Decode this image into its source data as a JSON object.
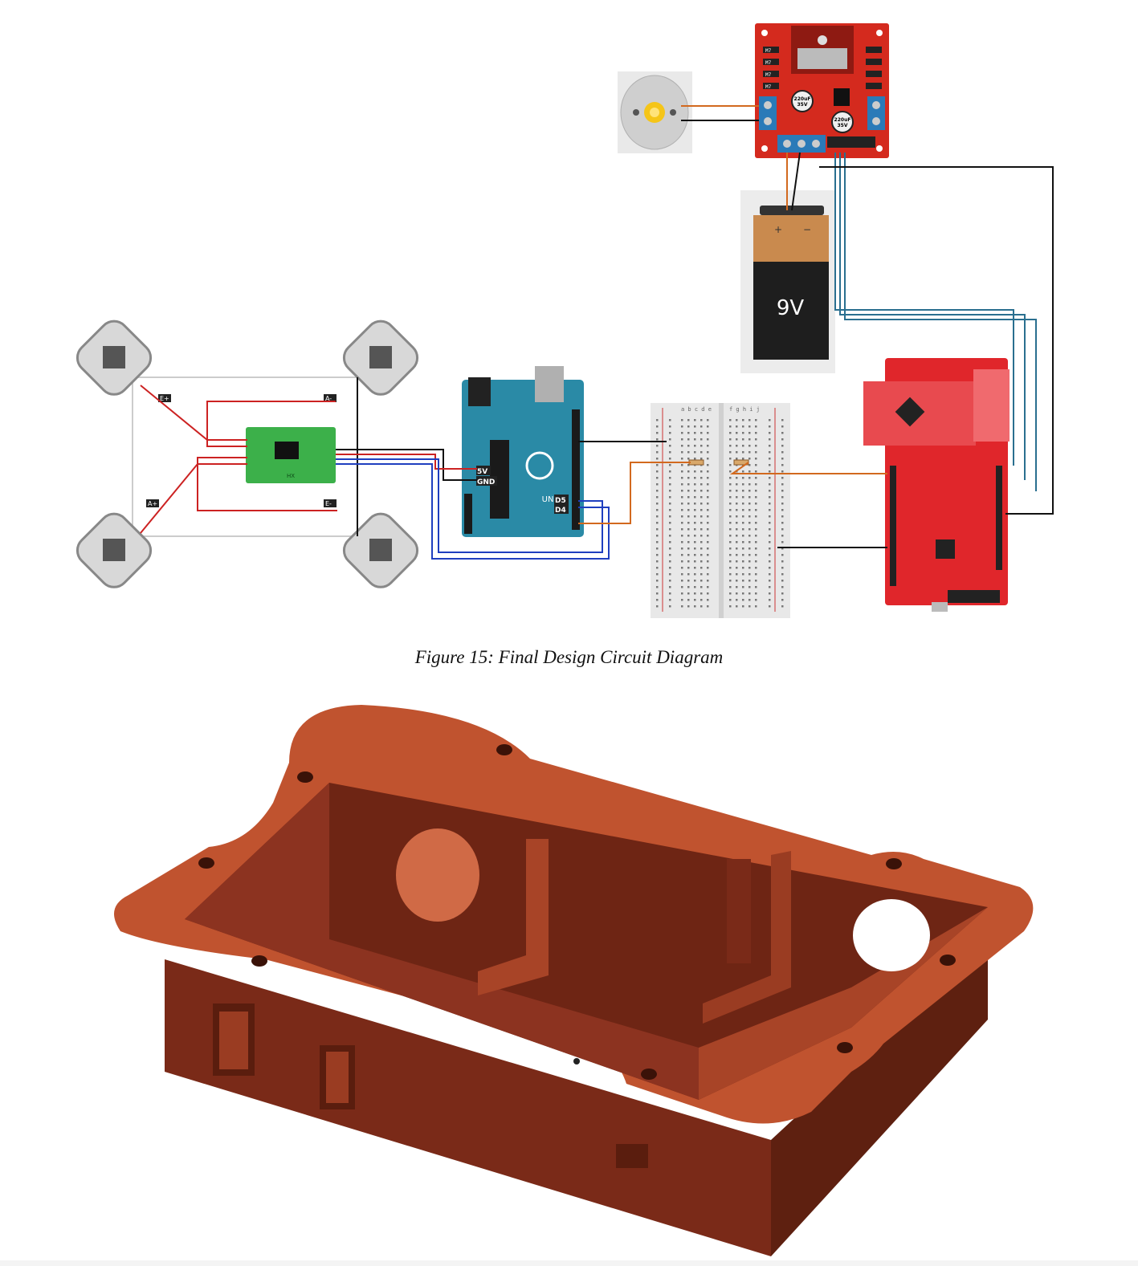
{
  "figure": {
    "caption": "Figure 15: Final Design Circuit Diagram"
  },
  "circuit": {
    "load_cell_labels": [
      "E+",
      "A-",
      "A+",
      "E-"
    ],
    "amplifier_label": "HX",
    "arduino_labels": {
      "five_volt": "5V",
      "ground": "GND",
      "pin_d5": "D5",
      "pin_d4": "D4",
      "brand": "UNO"
    },
    "motor_driver_capacitors": [
      "220uF\n35V",
      "220uF\n35V"
    ],
    "motor_driver_pins": [
      "M7",
      "M7",
      "M7",
      "M7"
    ],
    "battery_label": "9V",
    "battery_terminals": [
      "+",
      "−"
    ],
    "breadboard_columns_left": "a b c d e",
    "breadboard_columns_right": "f g h i j"
  },
  "colors": {
    "wire_red": "#cc2222",
    "wire_black": "#111111",
    "wire_blue": "#1f3fbf",
    "wire_teal": "#2a6f8f",
    "wire_orange": "#d2691e",
    "driver_board": "#d42a1e",
    "arduino_board": "#2a8aa6",
    "hx711_board": "#3cb04a",
    "launchpad_board": "#e0262b",
    "enclosure_top": "#c0532f",
    "enclosure_side": "#7a2a18",
    "enclosure_inner": "#8c3320"
  }
}
